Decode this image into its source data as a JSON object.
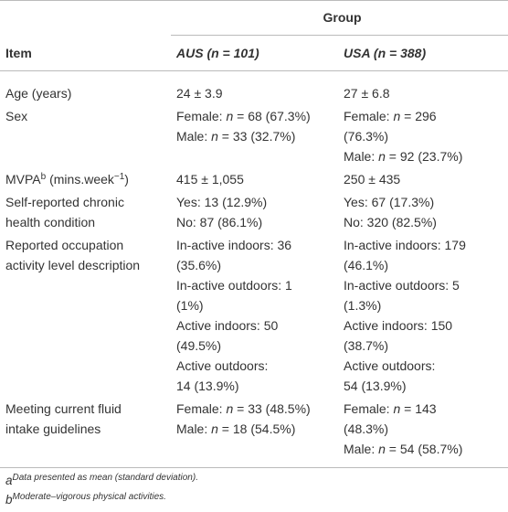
{
  "header": {
    "group": "Group",
    "item": "Item",
    "columns": [
      "AUS (n = 101)",
      "USA (n = 388)"
    ]
  },
  "table": {
    "rows": [
      {
        "item": [
          [
            "Age (years)"
          ]
        ],
        "cells": [
          [
            "24 ± 3.9"
          ],
          [
            "27 ± 6.8"
          ]
        ]
      },
      {
        "item": [
          [
            "Sex"
          ]
        ],
        "cells": [
          [
            "Female: n = 68 (67.3%)",
            "Male: n = 33 (32.7%)"
          ],
          [
            "Female: n = 296",
            "(76.3%)",
            "Male: n = 92 (23.7%)"
          ]
        ]
      },
      {
        "item": [
          [
            "MVPA",
            "b",
            " (mins.week",
            "−1",
            ")"
          ]
        ],
        "cells": [
          [
            "415 ± 1,055"
          ],
          [
            "250 ± 435"
          ]
        ]
      },
      {
        "item": [
          [
            "Self-reported chronic"
          ],
          [
            "health condition"
          ]
        ],
        "cells": [
          [
            "Yes: 13 (12.9%)",
            "No: 87 (86.1%)"
          ],
          [
            "Yes: 67 (17.3%)",
            "No: 320 (82.5%)"
          ]
        ]
      },
      {
        "item": [
          [
            "Reported occupation"
          ],
          [
            "activity level description"
          ]
        ],
        "cells": [
          [
            "In-active indoors: 36",
            "(35.6%)",
            "In-active outdoors: 1",
            "(1%)",
            "Active indoors: 50",
            "(49.5%)",
            "Active outdoors:",
            "14 (13.9%)"
          ],
          [
            "In-active indoors: 179",
            "(46.1%)",
            "In-active outdoors: 5",
            "(1.3%)",
            "Active indoors: 150",
            "(38.7%)",
            "Active outdoors:",
            "54 (13.9%)"
          ]
        ]
      },
      {
        "item": [
          [
            "Meeting current fluid"
          ],
          [
            "intake guidelines"
          ]
        ],
        "cells": [
          [
            "Female: n = 33 (48.5%)",
            "Male: n = 18 (54.5%)"
          ],
          [
            "Female: n = 143",
            "(48.3%)",
            "Male: n = 54 (58.7%)"
          ]
        ]
      }
    ]
  },
  "footnotes": [
    [
      "a",
      "Data presented as mean (standard deviation)."
    ],
    [
      "b",
      "Moderate–vigorous physical activities."
    ]
  ]
}
